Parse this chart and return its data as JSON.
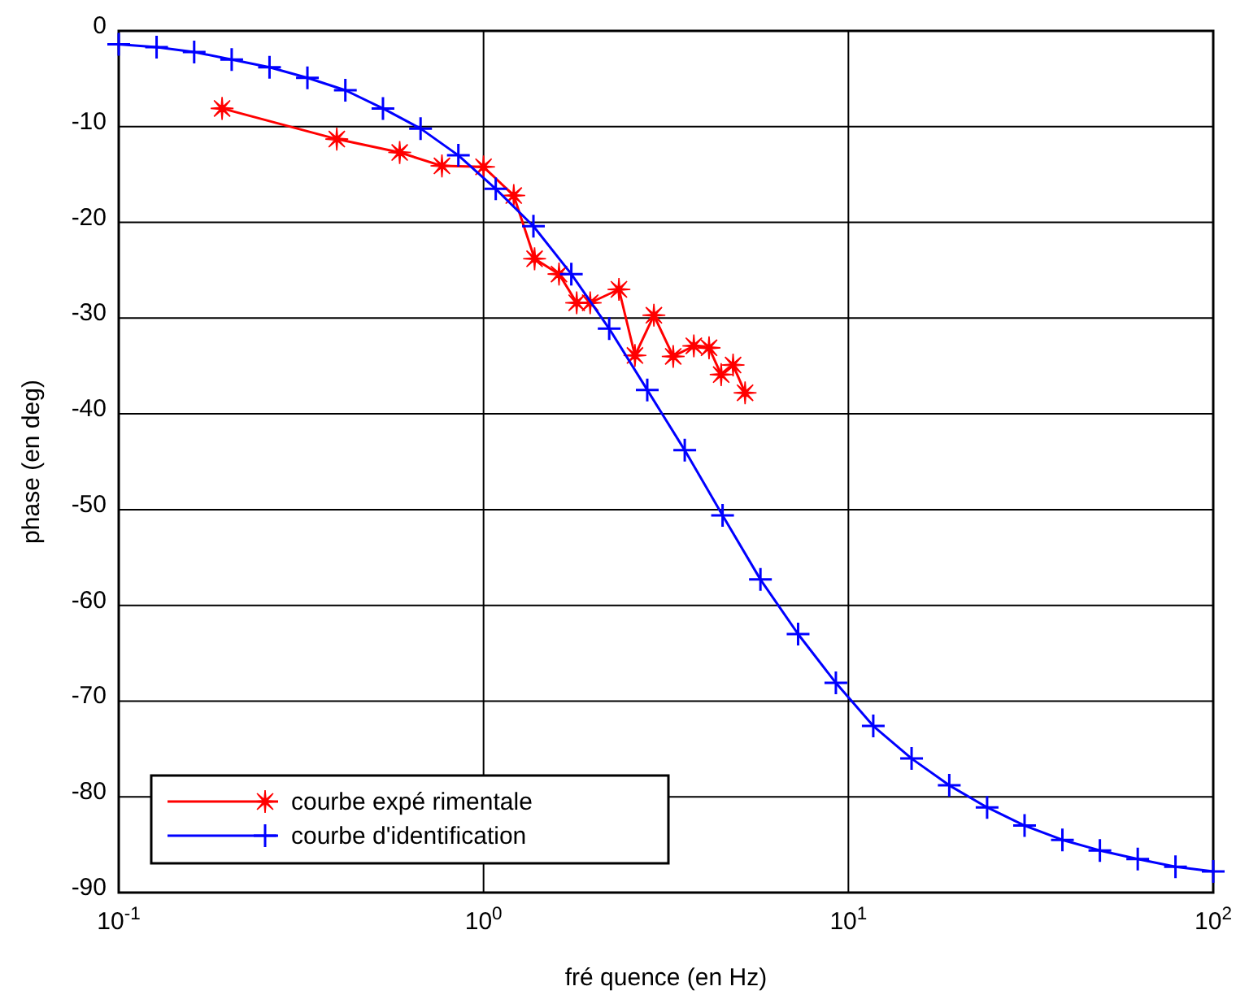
{
  "chart_data": {
    "type": "line",
    "xlabel": "fré quence (en Hz)",
    "ylabel": "phase (en deg)",
    "log": "x",
    "xlim": [
      0.1,
      100
    ],
    "ylim": [
      -90,
      0
    ],
    "xticks": [
      {
        "value": 0.1,
        "label": "10$^{-1}$"
      },
      {
        "value": 1,
        "label": "10$^{0}$"
      },
      {
        "value": 10,
        "label": "10$^{1}$"
      },
      {
        "value": 100,
        "label": "10$^{2}$"
      }
    ],
    "yticks": [
      -90,
      -80,
      -70,
      -60,
      -50,
      -40,
      -30,
      -20,
      -10,
      0
    ],
    "grid": true,
    "legend": "bottom left",
    "line_style": "solid",
    "series": [
      {
        "name": "courbe expé rimentale",
        "color": "#ff0000",
        "marker": "star",
        "x": [
          0.192,
          0.396,
          0.589,
          0.769,
          1.0,
          1.21,
          1.38,
          1.61,
          1.8,
          1.96,
          2.35,
          2.6,
          2.93,
          3.31,
          3.77,
          4.15,
          4.48,
          4.83,
          5.21
        ],
        "values": [
          -8.1,
          -11.3,
          -12.7,
          -14.1,
          -14.2,
          -17.2,
          -23.8,
          -25.4,
          -28.4,
          -28.4,
          -27,
          -33.9,
          -29.7,
          -34,
          -32.9,
          -33.1,
          -35.9,
          -34.9,
          -37.8
        ]
      },
      {
        "name": "courbe d'identification",
        "color": "#0000ff",
        "marker": "cross",
        "x": [
          0.1,
          0.127,
          0.161,
          0.204,
          0.259,
          0.329,
          0.418,
          0.53,
          0.672,
          0.853,
          1.08,
          1.37,
          1.74,
          2.21,
          2.81,
          3.56,
          4.52,
          5.74,
          7.28,
          9.24,
          11.7,
          14.9,
          18.9,
          24,
          30.4,
          38.6,
          48.9,
          62.1,
          78.8,
          100
        ],
        "values": [
          -1.4,
          -1.7,
          -2.2,
          -3,
          -3.8,
          -4.9,
          -6.2,
          -8.1,
          -10.2,
          -13,
          -16.5,
          -20.4,
          -25.4,
          -31.1,
          -37.5,
          -43.8,
          -50.6,
          -57.3,
          -63,
          -68.1,
          -72.6,
          -76,
          -78.8,
          -81.1,
          -83,
          -84.5,
          -85.6,
          -86.5,
          -87.3,
          -87.8
        ]
      }
    ]
  }
}
